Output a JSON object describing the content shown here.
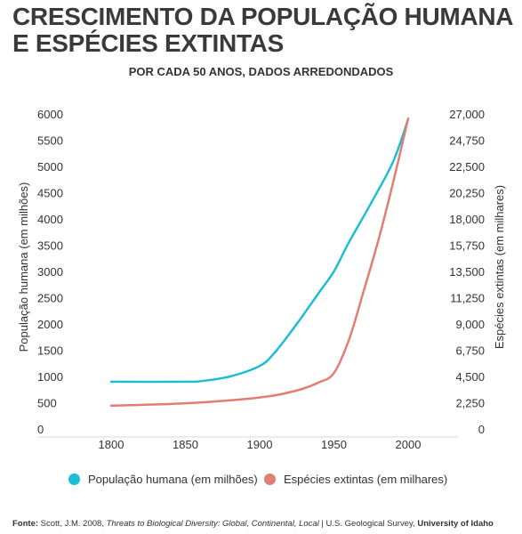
{
  "title_line1": "CRESCIMENTO DA POPULAÇÃO HUMANA",
  "title_line2": "E ESPÉCIES EXTINTAS",
  "subtitle": "POR CADA 50 ANOS, DADOS ARREDONDADOS",
  "chart_data": {
    "type": "line",
    "title": "CRESCIMENTO DA POPULAÇÃO HUMANA E ESPÉCIES EXTINTAS",
    "subtitle": "POR CADA 50 ANOS, DADOS ARREDONDADOS",
    "x_ticks": [
      "1800",
      "1850",
      "1900",
      "1950",
      "2000"
    ],
    "xlim": [
      1800,
      2000
    ],
    "ylabel_left": "População humana (em milhões)",
    "ylabel_right": "Espécies extintas (em milhares)",
    "y_left_ticks": [
      "0",
      "500",
      "1000",
      "1500",
      "2000",
      "2500",
      "3000",
      "3500",
      "4000",
      "4500",
      "5000",
      "5500",
      "6000"
    ],
    "y_left_lim": [
      0,
      6000
    ],
    "y_right_ticks": [
      "0",
      "2,250",
      "4,500",
      "6,750",
      "9,000",
      "11,250",
      "13,500",
      "15,750",
      "18,000",
      "20,250",
      "22,500",
      "24,750",
      "27,000"
    ],
    "y_right_lim": [
      0,
      27000
    ],
    "grid": false,
    "legend_position": "bottom",
    "series": [
      {
        "name": "População humana (em milhões)",
        "axis": "left",
        "color": "#1fbcd6",
        "points": [
          [
            1800,
            900
          ],
          [
            1850,
            900
          ],
          [
            1860,
            910
          ],
          [
            1880,
            1000
          ],
          [
            1900,
            1200
          ],
          [
            1910,
            1450
          ],
          [
            1925,
            2000
          ],
          [
            1940,
            2600
          ],
          [
            1950,
            3000
          ],
          [
            1960,
            3550
          ],
          [
            1975,
            4300
          ],
          [
            1990,
            5100
          ],
          [
            2000,
            5900
          ]
        ]
      },
      {
        "name": "Espécies extintas (em milhares)",
        "axis": "right",
        "color": "#e07f74",
        "points": [
          [
            1800,
            2000
          ],
          [
            1850,
            2200
          ],
          [
            1900,
            2700
          ],
          [
            1925,
            3300
          ],
          [
            1940,
            4000
          ],
          [
            1950,
            4800
          ],
          [
            1960,
            7600
          ],
          [
            1970,
            11800
          ],
          [
            1980,
            16200
          ],
          [
            1990,
            21200
          ],
          [
            2000,
            26600
          ]
        ]
      }
    ]
  },
  "source": {
    "prefix": "Fonte:",
    "text1": " Scott, J.M. 2008, ",
    "italic": "Threats to Biological Diversity: Global, Continental, Local",
    "text2": " | U.S. Geological Survey, ",
    "bold_end": "University of Idaho"
  }
}
